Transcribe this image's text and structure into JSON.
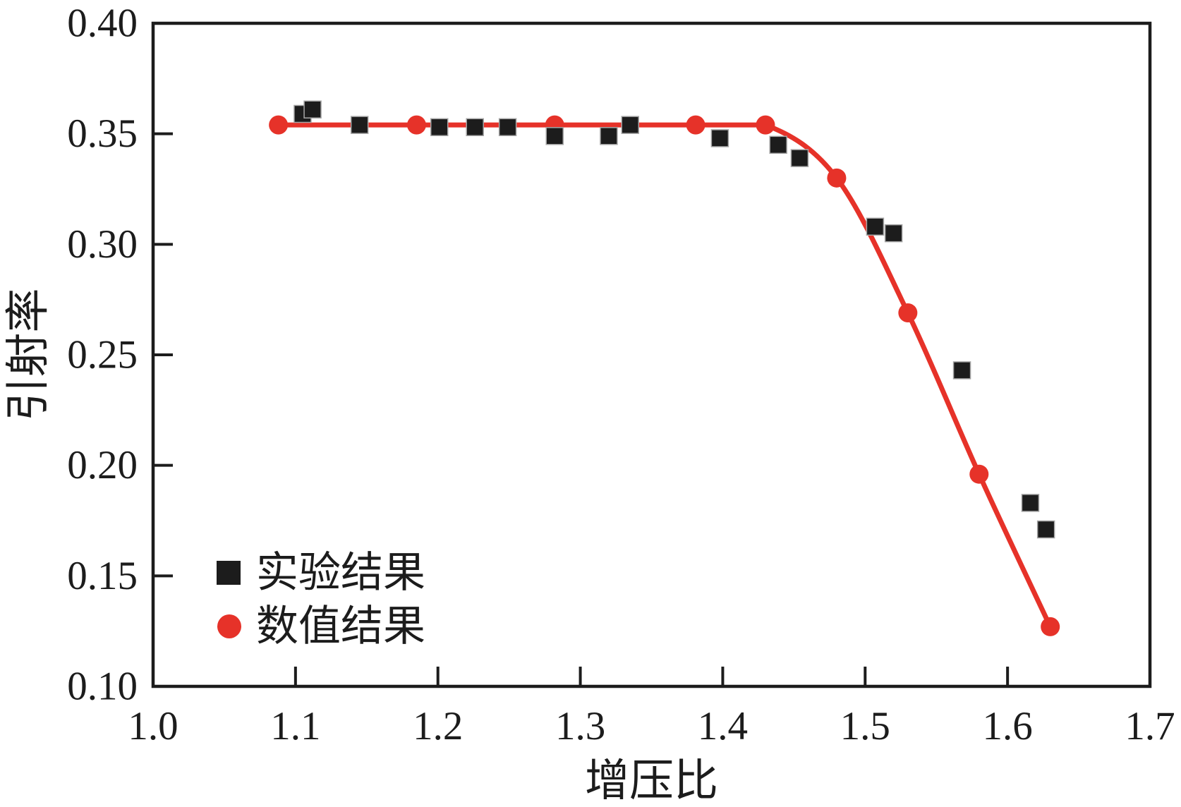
{
  "page": {
    "background": "#ffffff"
  },
  "chart_data": {
    "type": "line",
    "title": "",
    "xlabel": "增压比",
    "ylabel": "引射率",
    "xlim": [
      1.0,
      1.7
    ],
    "ylim": [
      0.1,
      0.4
    ],
    "xticks": {
      "values": [
        1.0,
        1.1,
        1.2,
        1.3,
        1.4,
        1.5,
        1.6,
        1.7
      ],
      "labels": [
        "1.0",
        "1.1",
        "1.2",
        "1.3",
        "1.4",
        "1.5",
        "1.6",
        "1.7"
      ]
    },
    "yticks": {
      "values": [
        0.1,
        0.15,
        0.2,
        0.25,
        0.3,
        0.35,
        0.4
      ],
      "labels": [
        "0.10",
        "0.15",
        "0.20",
        "0.25",
        "0.30",
        "0.35",
        "0.40"
      ]
    },
    "grid": false,
    "legend_position": "lower-left-inside",
    "axis_color": "#1c1c1c",
    "series": [
      {
        "name": "实验结果",
        "type": "scatter",
        "marker": "square",
        "color": "#1c1c1c",
        "points": [
          [
            1.105,
            0.359
          ],
          [
            1.112,
            0.361
          ],
          [
            1.145,
            0.354
          ],
          [
            1.201,
            0.353
          ],
          [
            1.226,
            0.353
          ],
          [
            1.249,
            0.353
          ],
          [
            1.282,
            0.349
          ],
          [
            1.32,
            0.349
          ],
          [
            1.335,
            0.354
          ],
          [
            1.398,
            0.348
          ],
          [
            1.439,
            0.345
          ],
          [
            1.454,
            0.339
          ],
          [
            1.507,
            0.308
          ],
          [
            1.52,
            0.305
          ],
          [
            1.568,
            0.243
          ],
          [
            1.616,
            0.183
          ],
          [
            1.627,
            0.171
          ]
        ]
      },
      {
        "name": "数值结果",
        "type": "line+markers",
        "marker": "circle",
        "color": "#e63229",
        "flat_until_x": 1.43,
        "points": [
          [
            1.088,
            0.354
          ],
          [
            1.185,
            0.354
          ],
          [
            1.282,
            0.354
          ],
          [
            1.381,
            0.354
          ],
          [
            1.43,
            0.354
          ],
          [
            1.48,
            0.33
          ],
          [
            1.53,
            0.269
          ],
          [
            1.58,
            0.196
          ],
          [
            1.63,
            0.127
          ]
        ]
      }
    ]
  }
}
